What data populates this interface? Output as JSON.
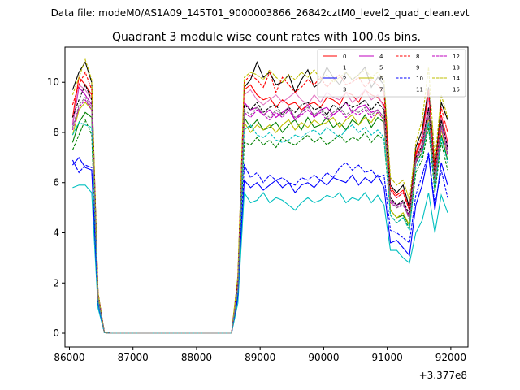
{
  "chart_data": {
    "type": "line",
    "suptitle": "Data file: modeM0/AS1A09_145T01_9000003866_26842cztM0_level2_quad_clean.evt",
    "title": "Quadrant 3 module wise count rates with 100.0s bins.",
    "xlabel": "",
    "ylabel": "",
    "x_offset_label": "+3.377e8",
    "xlim": [
      85930,
      92270
    ],
    "ylim": [
      -0.55,
      11.4
    ],
    "xticks": [
      86000,
      87000,
      88000,
      89000,
      90000,
      91000,
      92000
    ],
    "yticks": [
      0,
      2,
      4,
      6,
      8,
      10
    ],
    "legend_position": "top-right",
    "x": [
      86050,
      86150,
      86250,
      86350,
      86450,
      86550,
      86650,
      86750,
      86850,
      86950,
      87050,
      87150,
      87250,
      87350,
      87450,
      87550,
      87650,
      87750,
      87850,
      87950,
      88050,
      88150,
      88250,
      88350,
      88450,
      88550,
      88650,
      88750,
      88850,
      88950,
      89050,
      89150,
      89250,
      89350,
      89450,
      89550,
      89650,
      89750,
      89850,
      89950,
      90050,
      90150,
      90250,
      90350,
      90450,
      90550,
      90650,
      90750,
      90850,
      90950,
      91050,
      91150,
      91250,
      91350,
      91450,
      91550,
      91650,
      91750,
      91850,
      91950
    ],
    "series": [
      {
        "name": "0",
        "color": "#ff0000",
        "dash": "solid",
        "values": [
          8.6,
          10.2,
          9.9,
          9.5,
          1.5,
          0.02,
          0,
          0,
          0,
          0,
          0,
          0,
          0,
          0,
          0,
          0,
          0,
          0,
          0,
          0,
          0,
          0,
          0,
          0,
          0,
          0,
          2.0,
          9.7,
          9.9,
          9.5,
          9.3,
          9.4,
          9.0,
          9.3,
          9.1,
          9.2,
          8.9,
          9.1,
          9.2,
          9.0,
          9.4,
          9.3,
          9.1,
          9.6,
          9.5,
          9.2,
          9.7,
          9.5,
          9.4,
          9.1,
          5.8,
          5.5,
          5.7,
          4.9,
          7.1,
          7.8,
          9.6,
          6.3,
          8.7,
          7.6
        ]
      },
      {
        "name": "1",
        "color": "#008000",
        "dash": "solid",
        "values": [
          7.6,
          8.4,
          8.8,
          8.6,
          1.4,
          0.02,
          0,
          0,
          0,
          0,
          0,
          0,
          0,
          0,
          0,
          0,
          0,
          0,
          0,
          0,
          0,
          0,
          0,
          0,
          0,
          0,
          1.7,
          8.6,
          8.2,
          8.5,
          8.1,
          8.2,
          8.4,
          8.0,
          8.3,
          8.5,
          8.1,
          8.6,
          8.2,
          8.3,
          8.6,
          8.2,
          8.4,
          8.1,
          8.5,
          8.3,
          8.7,
          8.2,
          8.6,
          8.4,
          4.9,
          4.6,
          4.7,
          4.3,
          6.8,
          7.2,
          8.4,
          5.8,
          7.9,
          6.9
        ]
      },
      {
        "name": "2",
        "color": "#0000ff",
        "dash": "solid",
        "values": [
          6.7,
          7.0,
          6.6,
          6.5,
          1.2,
          0.02,
          0,
          0,
          0,
          0,
          0,
          0,
          0,
          0,
          0,
          0,
          0,
          0,
          0,
          0,
          0,
          0,
          0,
          0,
          0,
          0,
          1.4,
          6.1,
          5.8,
          6.0,
          5.7,
          5.9,
          6.1,
          5.8,
          6.0,
          5.6,
          5.9,
          6.0,
          5.8,
          6.1,
          5.9,
          6.2,
          6.1,
          6.0,
          6.3,
          5.9,
          6.2,
          6.0,
          6.3,
          5.8,
          3.6,
          3.7,
          3.4,
          3.1,
          5.1,
          5.9,
          7.1,
          4.9,
          6.8,
          5.9
        ]
      },
      {
        "name": "3",
        "color": "#000000",
        "dash": "solid",
        "values": [
          9.7,
          10.4,
          10.8,
          10.0,
          1.6,
          0.02,
          0,
          0,
          0,
          0,
          0,
          0,
          0,
          0,
          0,
          0,
          0,
          0,
          0,
          0,
          0,
          0,
          0,
          0,
          0,
          0,
          2.2,
          9.8,
          10.1,
          10.8,
          10.2,
          10.4,
          9.9,
          10.0,
          10.3,
          9.6,
          10.1,
          10.5,
          9.8,
          10.0,
          10.6,
          10.2,
          9.9,
          10.4,
          10.1,
          10.3,
          10.6,
          9.8,
          10.2,
          9.9,
          5.9,
          5.6,
          5.9,
          5.0,
          7.4,
          8.1,
          9.8,
          6.5,
          9.2,
          8.5
        ]
      },
      {
        "name": "4",
        "color": "#bf00bf",
        "dash": "solid",
        "values": [
          8.3,
          9.8,
          9.5,
          9.1,
          1.4,
          0.02,
          0,
          0,
          0,
          0,
          0,
          0,
          0,
          0,
          0,
          0,
          0,
          0,
          0,
          0,
          0,
          0,
          0,
          0,
          0,
          0,
          1.9,
          9.2,
          8.9,
          9.0,
          8.7,
          8.9,
          8.6,
          8.8,
          9.0,
          8.5,
          8.8,
          9.1,
          8.6,
          8.9,
          9.0,
          8.7,
          8.9,
          9.2,
          8.8,
          9.0,
          9.1,
          8.8,
          8.9,
          8.6,
          5.3,
          5.1,
          5.2,
          4.6,
          6.8,
          7.5,
          9.0,
          6.0,
          8.3,
          7.3
        ]
      },
      {
        "name": "5",
        "color": "#00bfbf",
        "dash": "solid",
        "values": [
          5.8,
          5.9,
          5.9,
          5.6,
          1.0,
          0.02,
          0,
          0,
          0,
          0,
          0,
          0,
          0,
          0,
          0,
          0,
          0,
          0,
          0,
          0,
          0,
          0,
          0,
          0,
          0,
          0,
          1.2,
          5.6,
          5.2,
          5.3,
          5.6,
          5.2,
          5.4,
          5.3,
          5.1,
          4.9,
          5.2,
          5.4,
          5.2,
          5.3,
          5.5,
          5.4,
          5.6,
          5.2,
          5.4,
          5.3,
          5.6,
          5.2,
          5.5,
          5.1,
          3.3,
          3.3,
          3.0,
          2.8,
          4.0,
          4.5,
          5.6,
          4.0,
          5.5,
          4.8
        ]
      },
      {
        "name": "6",
        "color": "#bfbf00",
        "dash": "solid",
        "values": [
          7.9,
          8.9,
          9.2,
          8.9,
          1.5,
          0.02,
          0,
          0,
          0,
          0,
          0,
          0,
          0,
          0,
          0,
          0,
          0,
          0,
          0,
          0,
          0,
          0,
          0,
          0,
          0,
          0,
          1.8,
          8.4,
          8.0,
          8.3,
          8.1,
          8.3,
          8.0,
          8.3,
          8.5,
          8.1,
          8.4,
          8.2,
          8.5,
          8.3,
          8.4,
          8.6,
          8.2,
          8.5,
          8.7,
          8.3,
          8.6,
          8.4,
          8.8,
          8.5,
          4.9,
          4.6,
          4.8,
          4.3,
          6.9,
          7.4,
          8.6,
          5.9,
          8.1,
          7.1
        ]
      },
      {
        "name": "7",
        "color": "#e377c2",
        "dash": "solid",
        "values": [
          8.4,
          9.9,
          9.7,
          9.3,
          1.5,
          0.02,
          0,
          0,
          0,
          0,
          0,
          0,
          0,
          0,
          0,
          0,
          0,
          0,
          0,
          0,
          0,
          0,
          0,
          0,
          0,
          0,
          1.9,
          9.5,
          9.7,
          9.3,
          9.1,
          9.3,
          9.5,
          9.2,
          9.4,
          9.6,
          9.3,
          9.1,
          9.5,
          9.2,
          9.6,
          9.4,
          9.3,
          9.6,
          9.2,
          9.4,
          9.7,
          9.3,
          9.5,
          9.0,
          5.7,
          5.4,
          5.6,
          4.9,
          7.0,
          7.7,
          9.4,
          6.2,
          8.6,
          7.5
        ]
      },
      {
        "name": "8",
        "color": "#ff0000",
        "dash": "dashed",
        "values": [
          9.1,
          9.9,
          10.4,
          9.7,
          1.6,
          0.02,
          0,
          0,
          0,
          0,
          0,
          0,
          0,
          0,
          0,
          0,
          0,
          0,
          0,
          0,
          0,
          0,
          0,
          0,
          0,
          0,
          2.1,
          10.0,
          10.3,
          10.1,
          9.8,
          10.4,
          9.6,
          10.2,
          9.9,
          9.6,
          9.8,
          10.1,
          9.9,
          10.2,
          9.8,
          10.1,
          10.3,
          9.9,
          10.0,
          10.2,
          9.8,
          10.1,
          9.9,
          9.6,
          5.7,
          5.4,
          5.6,
          4.9,
          7.2,
          7.9,
          9.7,
          6.4,
          9.0,
          8.0
        ]
      },
      {
        "name": "9",
        "color": "#008000",
        "dash": "dashed",
        "values": [
          7.3,
          7.9,
          8.5,
          7.9,
          1.3,
          0.02,
          0,
          0,
          0,
          0,
          0,
          0,
          0,
          0,
          0,
          0,
          0,
          0,
          0,
          0,
          0,
          0,
          0,
          0,
          0,
          0,
          1.6,
          7.6,
          7.5,
          7.8,
          7.5,
          7.7,
          7.4,
          7.8,
          7.6,
          7.5,
          7.7,
          7.9,
          7.6,
          7.8,
          7.5,
          7.7,
          7.9,
          7.6,
          7.8,
          7.7,
          8.0,
          7.6,
          7.9,
          7.7,
          4.7,
          4.4,
          4.6,
          4.2,
          6.4,
          6.9,
          8.2,
          5.6,
          7.6,
          6.5
        ]
      },
      {
        "name": "10",
        "color": "#0000ff",
        "dash": "dashed",
        "values": [
          6.9,
          6.4,
          6.7,
          6.6,
          1.2,
          0.02,
          0,
          0,
          0,
          0,
          0,
          0,
          0,
          0,
          0,
          0,
          0,
          0,
          0,
          0,
          0,
          0,
          0,
          0,
          0,
          0,
          1.5,
          6.7,
          6.2,
          6.4,
          6.0,
          6.3,
          6.1,
          6.2,
          6.0,
          5.9,
          6.2,
          6.1,
          6.3,
          6.1,
          6.4,
          6.2,
          6.6,
          6.8,
          6.5,
          6.7,
          6.4,
          6.5,
          6.2,
          6.3,
          4.1,
          4.0,
          3.8,
          3.6,
          5.5,
          6.3,
          7.2,
          5.1,
          6.5,
          5.4
        ]
      },
      {
        "name": "11",
        "color": "#000000",
        "dash": "dashed",
        "values": [
          8.6,
          9.3,
          9.9,
          9.3,
          1.5,
          0.02,
          0,
          0,
          0,
          0,
          0,
          0,
          0,
          0,
          0,
          0,
          0,
          0,
          0,
          0,
          0,
          0,
          0,
          0,
          0,
          0,
          1.9,
          9.1,
          8.9,
          9.2,
          8.8,
          9.0,
          9.1,
          8.7,
          9.0,
          8.8,
          9.1,
          9.2,
          8.9,
          9.0,
          8.7,
          9.1,
          8.9,
          9.2,
          9.0,
          9.1,
          9.3,
          8.9,
          9.2,
          8.9,
          5.4,
          5.1,
          5.3,
          4.7,
          7.0,
          7.5,
          9.0,
          6.1,
          8.5,
          7.4
        ]
      },
      {
        "name": "12",
        "color": "#bf00bf",
        "dash": "dashed",
        "values": [
          8.1,
          9.0,
          9.3,
          8.9,
          1.4,
          0.02,
          0,
          0,
          0,
          0,
          0,
          0,
          0,
          0,
          0,
          0,
          0,
          0,
          0,
          0,
          0,
          0,
          0,
          0,
          0,
          0,
          1.8,
          8.8,
          8.6,
          8.9,
          8.7,
          8.5,
          8.8,
          8.6,
          8.9,
          8.5,
          8.7,
          8.9,
          8.6,
          8.8,
          8.5,
          8.7,
          8.9,
          8.6,
          8.8,
          8.7,
          8.9,
          8.6,
          8.8,
          8.5,
          5.2,
          5.0,
          5.1,
          4.6,
          6.9,
          7.3,
          8.7,
          5.9,
          8.2,
          7.1
        ]
      },
      {
        "name": "13",
        "color": "#00bfbf",
        "dash": "dashed",
        "values": [
          7.9,
          8.4,
          8.3,
          8.2,
          1.3,
          0.02,
          0,
          0,
          0,
          0,
          0,
          0,
          0,
          0,
          0,
          0,
          0,
          0,
          0,
          0,
          0,
          0,
          0,
          0,
          0,
          0,
          1.7,
          8.1,
          8.3,
          7.9,
          7.8,
          8.0,
          7.7,
          7.6,
          7.7,
          7.9,
          7.8,
          8.0,
          8.1,
          7.9,
          8.2,
          8.0,
          7.8,
          8.1,
          8.3,
          8.0,
          8.2,
          7.9,
          8.1,
          7.8,
          4.7,
          4.4,
          4.6,
          4.1,
          6.6,
          7.1,
          8.4,
          5.7,
          7.8,
          6.8
        ]
      },
      {
        "name": "14",
        "color": "#bfbf00",
        "dash": "dashed",
        "values": [
          9.5,
          10.2,
          10.9,
          10.1,
          1.6,
          0.02,
          0,
          0,
          0,
          0,
          0,
          0,
          0,
          0,
          0,
          0,
          0,
          0,
          0,
          0,
          0,
          0,
          0,
          0,
          0,
          0,
          2.3,
          10.2,
          10.4,
          10.3,
          10.1,
          10.5,
          10.2,
          10.0,
          10.3,
          10.1,
          10.4,
          10.2,
          10.5,
          10.1,
          10.3,
          10.0,
          10.2,
          10.4,
          10.1,
          10.3,
          10.5,
          10.2,
          10.4,
          10.1,
          6.2,
          5.9,
          6.1,
          5.3,
          7.6,
          8.5,
          10.6,
          6.9,
          9.5,
          8.6
        ]
      },
      {
        "name": "15",
        "color": "#7f7f7f",
        "dash": "dashed",
        "values": [
          8.2,
          9.1,
          9.4,
          9.0,
          1.4,
          0.02,
          0,
          0,
          0,
          0,
          0,
          0,
          0,
          0,
          0,
          0,
          0,
          0,
          0,
          0,
          0,
          0,
          0,
          0,
          0,
          0,
          1.8,
          8.9,
          8.7,
          9.0,
          8.8,
          8.6,
          8.9,
          8.7,
          9.0,
          8.6,
          8.8,
          9.0,
          8.7,
          8.9,
          8.6,
          8.8,
          9.0,
          8.7,
          8.9,
          8.8,
          9.0,
          8.7,
          8.9,
          8.6,
          5.3,
          5.0,
          5.2,
          4.5,
          6.9,
          7.4,
          8.8,
          6.0,
          8.3,
          7.2
        ]
      }
    ]
  }
}
